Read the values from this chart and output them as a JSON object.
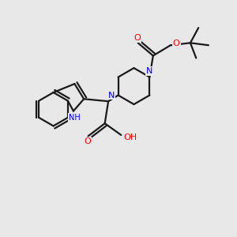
{
  "bg_color": "#e8e8e8",
  "bond_color": "#1a1a1a",
  "nitrogen_color": "#0000ff",
  "oxygen_color": "#ff0000",
  "line_width": 1.6,
  "fig_size": [
    3.0,
    3.0
  ],
  "dpi": 100,
  "xlim": [
    0,
    10
  ],
  "ylim": [
    0,
    10
  ]
}
